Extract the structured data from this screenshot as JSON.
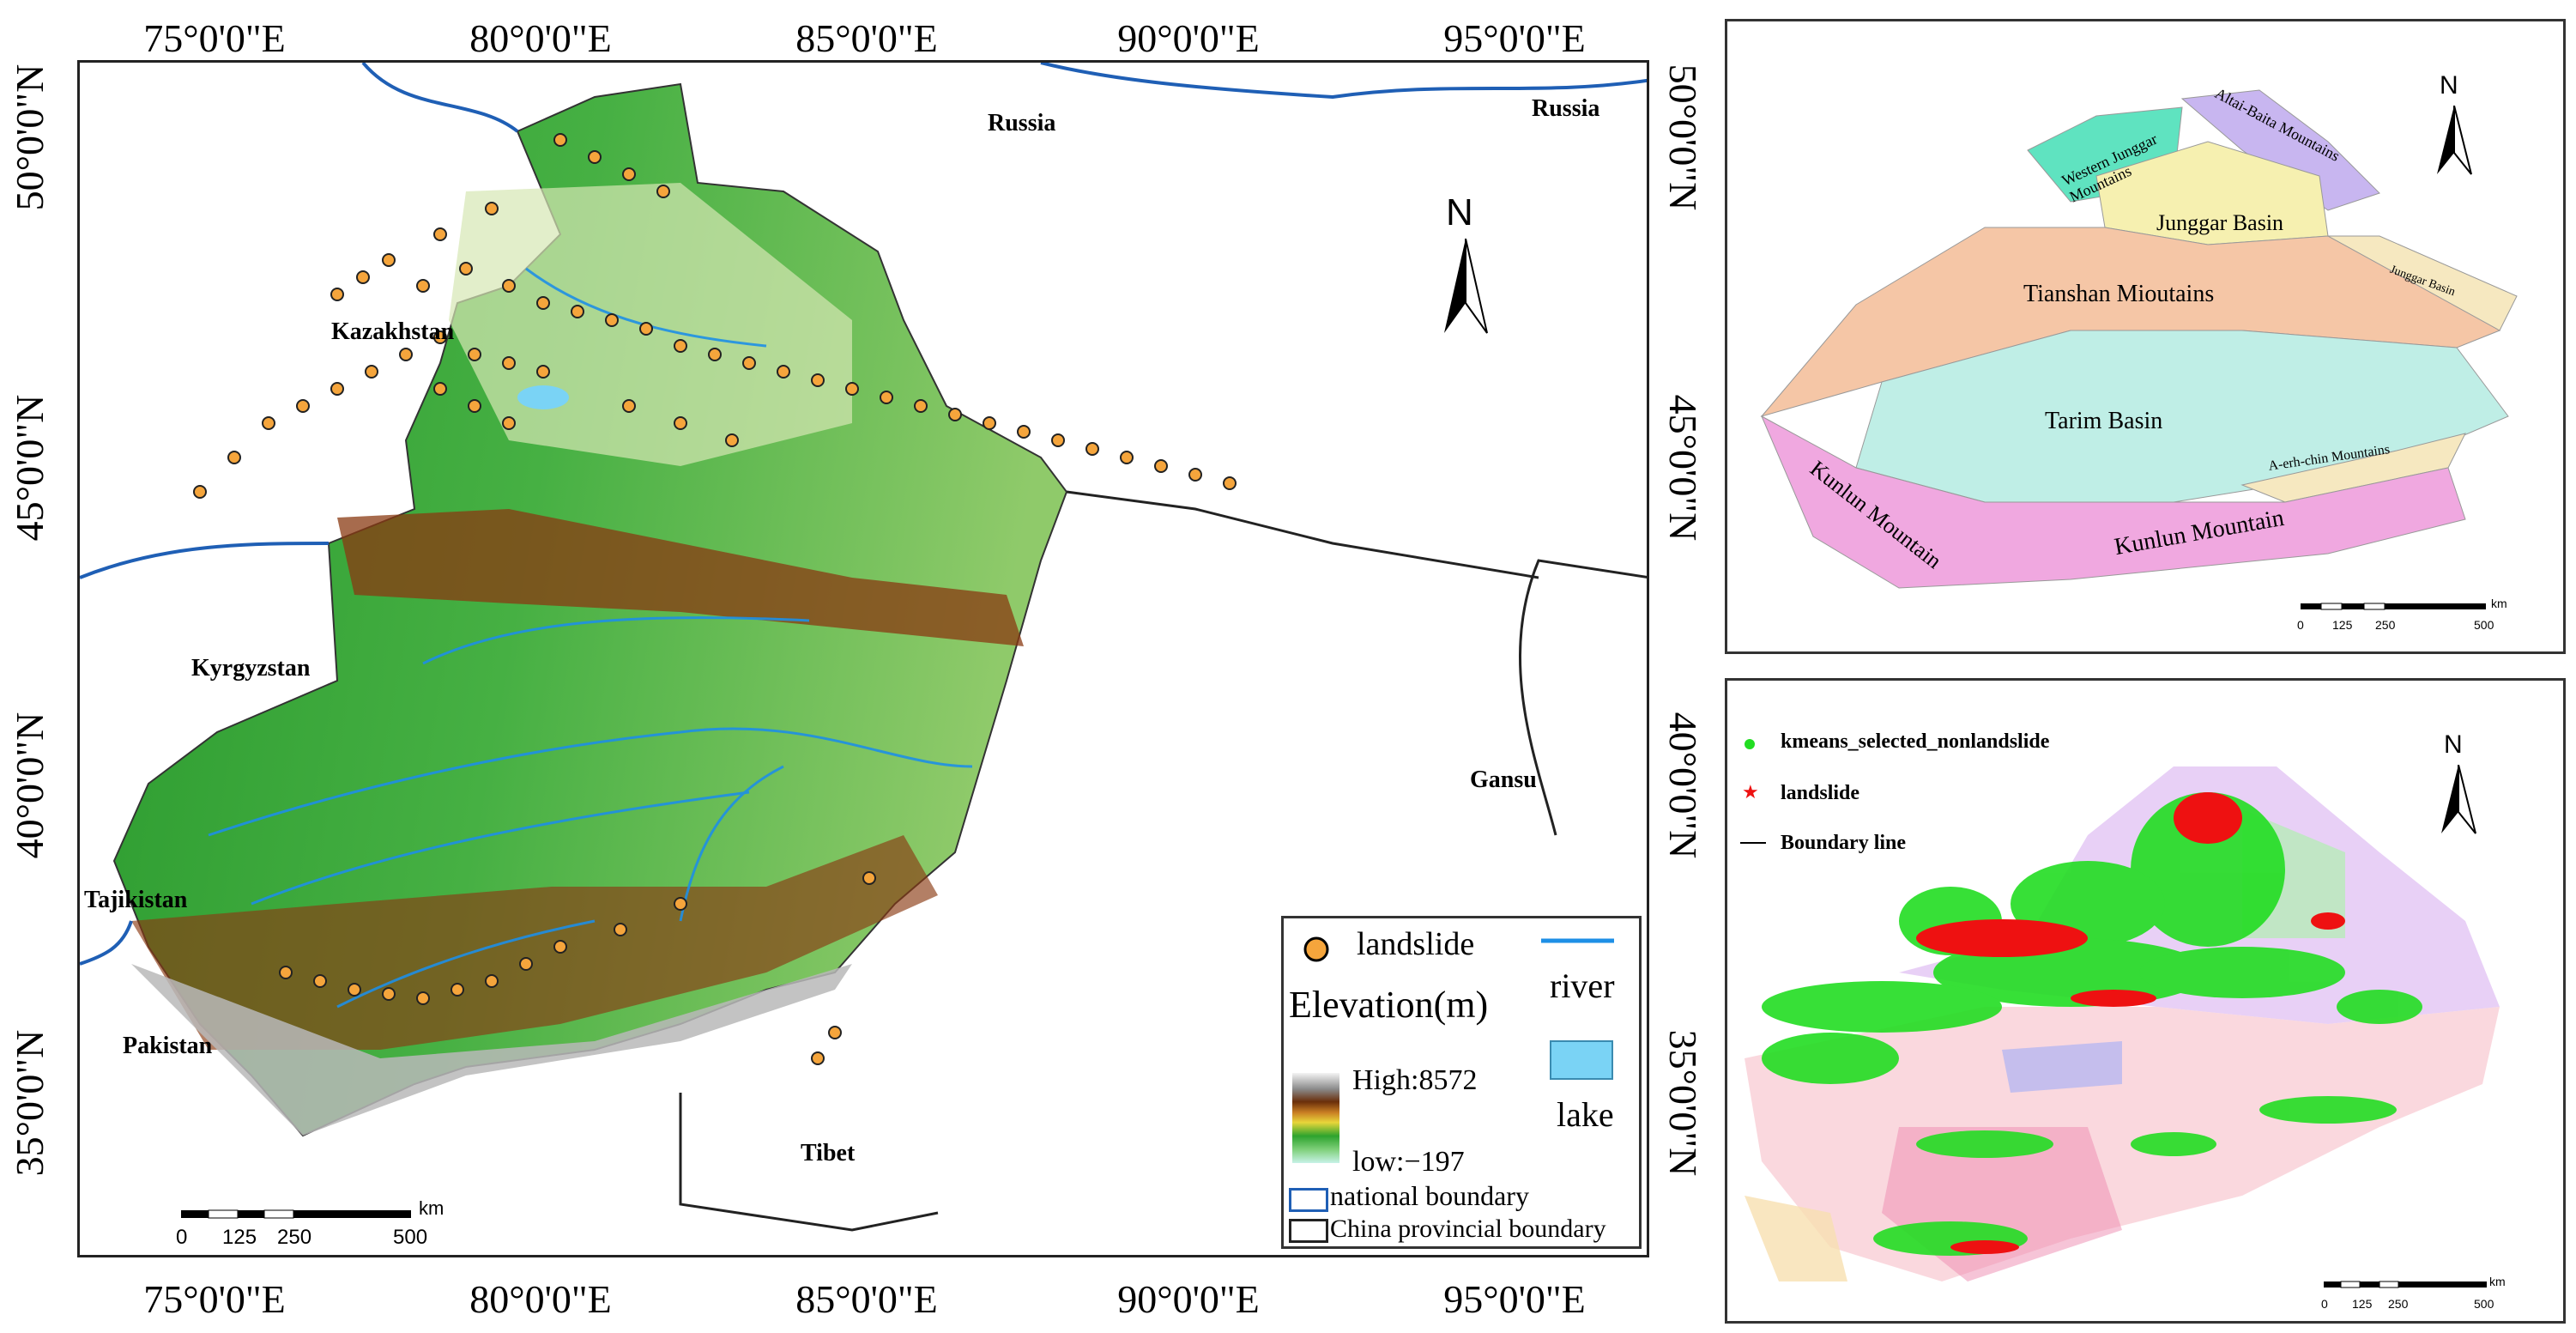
{
  "main_map": {
    "lon_ticks": [
      "75°0'0\"E",
      "80°0'0\"E",
      "85°0'0\"E",
      "90°0'0\"E",
      "95°0'0\"E"
    ],
    "lat_ticks": [
      "50°0'0\"N",
      "45°0'0\"N",
      "40°0'0\"N",
      "35°0'0\"N"
    ],
    "countries": {
      "russia_1": "Russia",
      "russia_2": "Russia",
      "kazakhstan": "Kazakhstan",
      "kyrgyzstan": "Kyrgyzstan",
      "tajikistan": "Tajikistan",
      "pakistan": "Pakistan",
      "tibet": "Tibet",
      "gansu": "Gansu"
    },
    "north": "N",
    "legend": {
      "landslide": "landslide",
      "river": "river",
      "elevation_title": "Elevation(m)",
      "high": "High:8572",
      "low": "low:−197",
      "lake": "lake",
      "national_boundary": "national boundary",
      "provincial_boundary": "China provincial boundary"
    },
    "scalebar": {
      "unit": "km",
      "ticks": [
        "0",
        "125",
        "250",
        "500"
      ]
    },
    "colors": {
      "landslide": "#f5a53c",
      "river": "#1e8fe6",
      "lake": "#7ad3f5",
      "national_boundary": "#1f5fb5"
    }
  },
  "regions_map": {
    "north": "N",
    "regions": {
      "altai": "Altai-Baita Mountains",
      "western_junggar": "Western Junggar Mountains",
      "junggar_basin": "Junggar Basin",
      "junggar_basin_small": "Junggar Basin",
      "tianshan": "Tianshan Mioutains",
      "tarim": "Tarim Basin",
      "aerhchin": "A-erh-chin Mountains",
      "kunlun_1": "Kunlun Mountain",
      "kunlun_2": "Kunlun Mountain"
    },
    "scalebar": {
      "unit": "km",
      "ticks": [
        "0",
        "125",
        "250",
        "500"
      ]
    }
  },
  "samples_map": {
    "north": "N",
    "legend": {
      "nonlandslide": "kmeans_selected_nonlandslide",
      "landslide": "landslide",
      "boundary": "Boundary line"
    },
    "colors": {
      "nonlandslide": "#22dd22",
      "landslide": "#ee1111"
    },
    "scalebar": {
      "unit": "km",
      "ticks": [
        "0",
        "125",
        "250",
        "500"
      ]
    }
  }
}
